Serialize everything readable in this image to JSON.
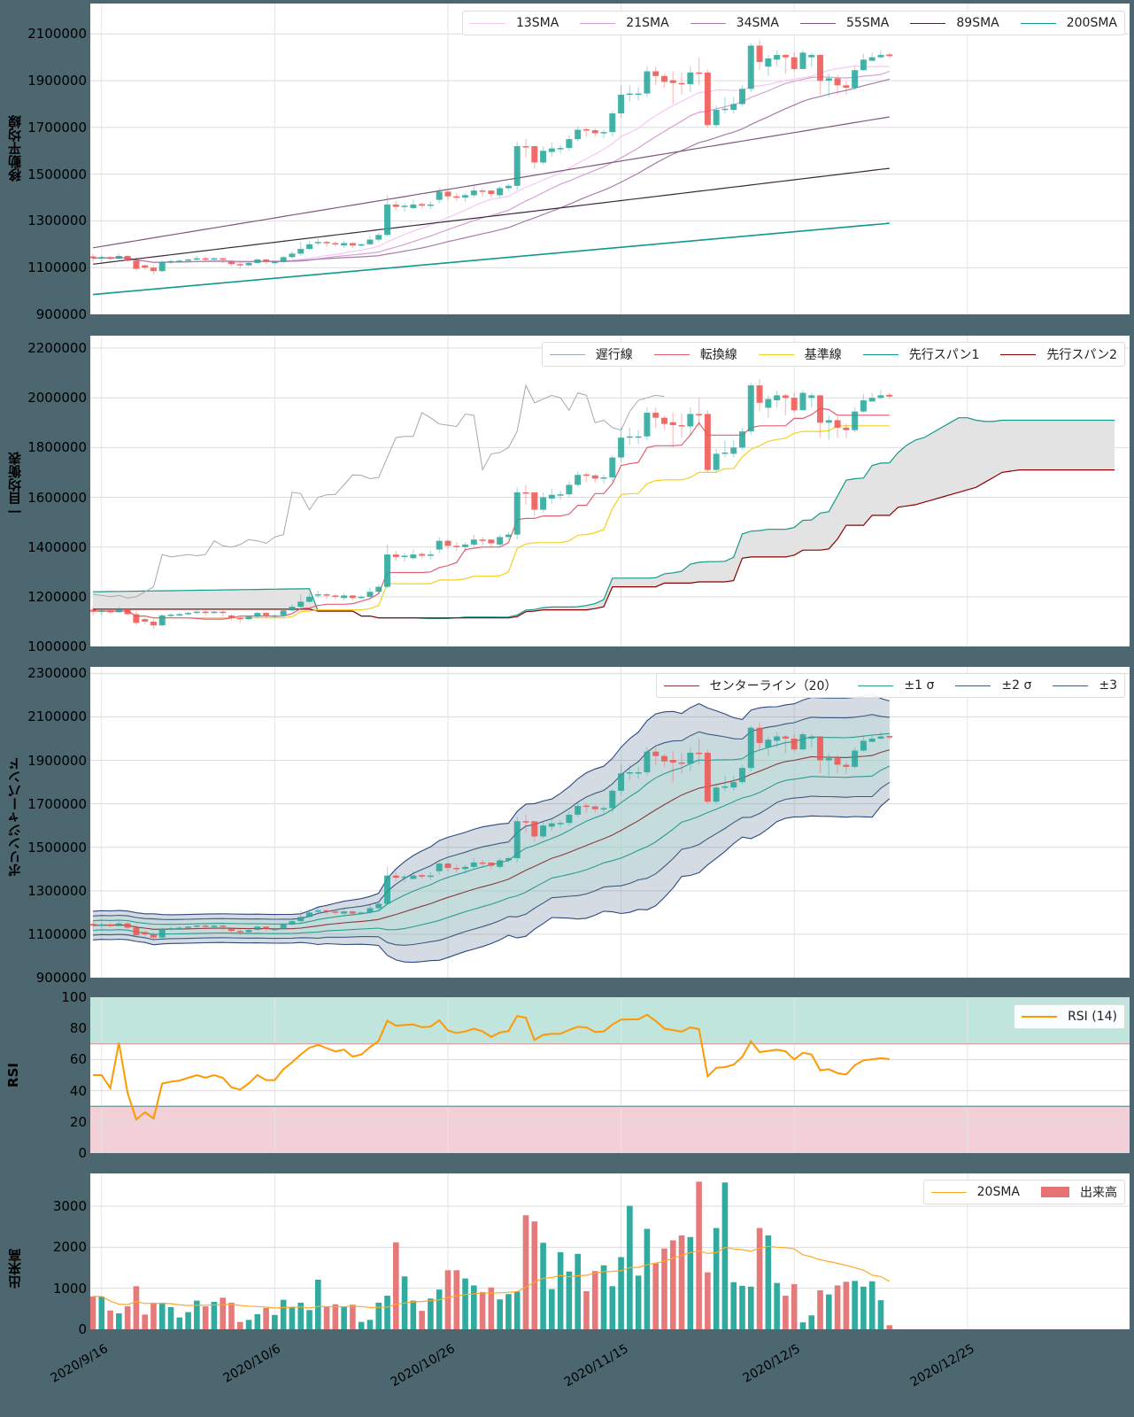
{
  "figure": {
    "background": "#4c6770",
    "up_color": "#26a69a",
    "down_color": "#ef5350"
  },
  "panels": {
    "sma": {
      "ylabel": "移動平均線",
      "yticks": [
        "2100000",
        "1900000",
        "1700000",
        "1500000",
        "1300000",
        "1100000",
        "900000"
      ],
      "legend": [
        {
          "label": "13SMA",
          "color": "#f5c8f5"
        },
        {
          "label": "21SMA",
          "color": "#d4a0d4"
        },
        {
          "label": "34SMA",
          "color": "#a87aa8"
        },
        {
          "label": "55SMA",
          "color": "#7d5a7d"
        },
        {
          "label": "89SMA",
          "color": "#3d2a3d"
        },
        {
          "label": "200SMA",
          "color": "#11998e"
        }
      ]
    },
    "ichimoku": {
      "ylabel": "一目均衡表",
      "yticks": [
        "2200000",
        "2000000",
        "1800000",
        "1600000",
        "1400000",
        "1200000",
        "1000000"
      ],
      "legend": [
        {
          "label": "遅行線",
          "color": "#a0a8b0"
        },
        {
          "label": "転換線",
          "color": "#e06070"
        },
        {
          "label": "基準線",
          "color": "#f5d020"
        },
        {
          "label": "先行スパン1",
          "color": "#139a8c"
        },
        {
          "label": "先行スパン2",
          "color": "#8b0000"
        }
      ]
    },
    "bollinger": {
      "ylabel": "ボリンジャーバンド",
      "yticks": [
        "2300000",
        "2100000",
        "1900000",
        "1700000",
        "1500000",
        "1300000",
        "1100000",
        "900000"
      ],
      "legend": [
        {
          "label": "センターライン（20）",
          "color": "#8b3a3a"
        },
        {
          "label": "±1 σ",
          "color": "#2a9d8f"
        },
        {
          "label": "±2 σ",
          "color": "#3d5a80"
        },
        {
          "label": "±3",
          "color": "#3d5a80"
        }
      ]
    },
    "rsi": {
      "ylabel": "RSI",
      "yticks": [
        "100",
        "80",
        "60",
        "40",
        "20",
        "0"
      ],
      "legend": [
        {
          "label": "RSI (14)",
          "color": "#ff9900"
        }
      ]
    },
    "volume": {
      "ylabel": "出来高",
      "yticks": [
        "3000",
        "2000",
        "1000",
        "0"
      ],
      "legend": [
        {
          "label": "20SMA",
          "color": "#ffa726"
        },
        {
          "label": "出来高",
          "color": "#e57373"
        }
      ]
    }
  },
  "xaxis": {
    "ticks": [
      "2020/9/16",
      "2020/10/6",
      "2020/10/26",
      "2020/11/15",
      "2020/12/5",
      "2020/12/25"
    ]
  },
  "chart_data": {
    "type": "candlestick+indicators",
    "start_date": "2020/9/15",
    "x_range_days": [
      -0.3,
      117.5
    ],
    "ohlc_close": [
      1140000,
      1145000,
      1138000,
      1150000,
      1130000,
      1095000,
      1100000,
      1085000,
      1125000,
      1128000,
      1130000,
      1135000,
      1140000,
      1135000,
      1140000,
      1135000,
      1115000,
      1110000,
      1120000,
      1135000,
      1125000,
      1125000,
      1145000,
      1160000,
      1180000,
      1200000,
      1210000,
      1205000,
      1200000,
      1205000,
      1195000,
      1200000,
      1220000,
      1240000,
      1370000,
      1360000,
      1365000,
      1370000,
      1365000,
      1370000,
      1425000,
      1405000,
      1400000,
      1410000,
      1430000,
      1425000,
      1415000,
      1440000,
      1450000,
      1620000,
      1615000,
      1550000,
      1600000,
      1610000,
      1612000,
      1650000,
      1690000,
      1688000,
      1675000,
      1680000,
      1760000,
      1840000,
      1845000,
      1845000,
      1940000,
      1920000,
      1895000,
      1890000,
      1885000,
      1935000,
      1930000,
      1710000,
      1775000,
      1780000,
      1800000,
      1865000,
      2050000,
      1980000,
      1995000,
      2010000,
      2000000,
      1950000,
      2020000,
      2010000,
      1900000,
      1910000,
      1880000,
      1870000,
      1945000,
      1990000,
      2000000,
      2010000,
      2005000
    ],
    "ohlc_open": [
      1148000,
      1140000,
      1145000,
      1138000,
      1150000,
      1130000,
      1110000,
      1100000,
      1085000,
      1125000,
      1128000,
      1130000,
      1135000,
      1140000,
      1135000,
      1140000,
      1125000,
      1115000,
      1110000,
      1120000,
      1135000,
      1120000,
      1125000,
      1145000,
      1160000,
      1180000,
      1205000,
      1210000,
      1205000,
      1195000,
      1205000,
      1195000,
      1200000,
      1220000,
      1240000,
      1370000,
      1360000,
      1355000,
      1372000,
      1365000,
      1390000,
      1425000,
      1405000,
      1400000,
      1410000,
      1430000,
      1430000,
      1410000,
      1440000,
      1450000,
      1620000,
      1620000,
      1550000,
      1595000,
      1610000,
      1612000,
      1650000,
      1692000,
      1688000,
      1675000,
      1680000,
      1760000,
      1840000,
      1843000,
      1845000,
      1940000,
      1920000,
      1902000,
      1890000,
      1885000,
      1935000,
      1935000,
      1710000,
      1780000,
      1775000,
      1800000,
      1865000,
      2050000,
      1960000,
      1990000,
      2010000,
      2000000,
      1950000,
      2000000,
      2010000,
      1900000,
      1910000,
      1880000,
      1870000,
      1945000,
      1985000,
      2000000,
      2012000
    ],
    "ohlc_high": [
      1160000,
      1155000,
      1150000,
      1160000,
      1155000,
      1145000,
      1115000,
      1110000,
      1130000,
      1135000,
      1137000,
      1140000,
      1150000,
      1148000,
      1145000,
      1145000,
      1130000,
      1125000,
      1125000,
      1140000,
      1138000,
      1130000,
      1150000,
      1170000,
      1210000,
      1215000,
      1225000,
      1215000,
      1212000,
      1215000,
      1208000,
      1205000,
      1235000,
      1250000,
      1410000,
      1385000,
      1375000,
      1390000,
      1380000,
      1385000,
      1440000,
      1430000,
      1420000,
      1420000,
      1450000,
      1440000,
      1430000,
      1450000,
      1460000,
      1640000,
      1650000,
      1600000,
      1620000,
      1635000,
      1625000,
      1665000,
      1705000,
      1700000,
      1695000,
      1690000,
      1770000,
      1880000,
      1880000,
      1870000,
      1960000,
      1960000,
      1930000,
      1940000,
      1935000,
      1960000,
      2000000,
      1950000,
      1795000,
      1830000,
      1830000,
      1880000,
      2060000,
      2075000,
      2010000,
      2030000,
      2015000,
      2020000,
      2030000,
      2020000,
      2012000,
      1930000,
      1925000,
      1895000,
      1960000,
      2015000,
      2020000,
      2030000,
      2020000
    ],
    "ohlc_low": [
      1125000,
      1125000,
      1130000,
      1135000,
      1125000,
      1085000,
      1090000,
      1070000,
      1080000,
      1115000,
      1120000,
      1125000,
      1130000,
      1125000,
      1130000,
      1120000,
      1105000,
      1095000,
      1105000,
      1115000,
      1115000,
      1115000,
      1120000,
      1140000,
      1150000,
      1175000,
      1195000,
      1190000,
      1190000,
      1185000,
      1185000,
      1190000,
      1195000,
      1210000,
      1235000,
      1345000,
      1340000,
      1350000,
      1355000,
      1350000,
      1375000,
      1390000,
      1385000,
      1380000,
      1400000,
      1405000,
      1400000,
      1400000,
      1430000,
      1430000,
      1570000,
      1525000,
      1540000,
      1575000,
      1590000,
      1600000,
      1640000,
      1660000,
      1660000,
      1655000,
      1660000,
      1740000,
      1810000,
      1815000,
      1830000,
      1880000,
      1870000,
      1800000,
      1840000,
      1850000,
      1880000,
      1700000,
      1700000,
      1760000,
      1760000,
      1790000,
      1850000,
      1945000,
      1920000,
      1960000,
      1930000,
      1940000,
      1980000,
      1960000,
      1840000,
      1830000,
      1840000,
      1840000,
      1860000,
      1940000,
      1990000,
      1995000,
      1995000
    ],
    "volume": [
      800,
      800,
      460,
      390,
      560,
      1050,
      360,
      650,
      650,
      540,
      290,
      420,
      700,
      560,
      670,
      770,
      650,
      180,
      230,
      370,
      520,
      350,
      720,
      550,
      650,
      470,
      1210,
      540,
      610,
      550,
      600,
      180,
      230,
      650,
      820,
      2120,
      1290,
      700,
      450,
      750,
      970,
      1440,
      1440,
      1240,
      1070,
      910,
      1020,
      730,
      860,
      920,
      2780,
      2630,
      2110,
      980,
      1880,
      1410,
      1840,
      930,
      1420,
      1560,
      1050,
      1760,
      3010,
      1310,
      2450,
      1610,
      1970,
      2170,
      2290,
      2250,
      3600,
      1390,
      2470,
      3580,
      1150,
      1060,
      1040,
      2470,
      2290,
      1130,
      820,
      1100,
      170,
      340,
      950,
      850,
      1070,
      1160,
      1180,
      1040,
      1170,
      710,
      100
    ],
    "sma_long": {
      "sma55_start": 1185000,
      "sma55_end": 1745000,
      "sma89_start": 1115000,
      "sma89_end": 1525000,
      "sma200_start": 985000,
      "sma200_end": 1290000
    },
    "ichimoku_cloud_future": {
      "span1_end": [
        1780000,
        1810000,
        1830000,
        1840000,
        1860000,
        1880000,
        1900000,
        1920000,
        1920000,
        1910000,
        1905000,
        1905000,
        1910000,
        1910000,
        1910000,
        1910000,
        1910000,
        1910000,
        1910000,
        1910000,
        1910000,
        1910000,
        1910000,
        1910000,
        1910000,
        1910000
      ],
      "span2_end": [
        1560000,
        1565000,
        1570000,
        1580000,
        1590000,
        1600000,
        1610000,
        1620000,
        1630000,
        1640000,
        1660000,
        1680000,
        1700000,
        1705000,
        1710000,
        1710000,
        1710000,
        1710000,
        1710000,
        1710000,
        1710000,
        1710000,
        1710000,
        1710000,
        1710000,
        1710000
      ]
    },
    "rsi_band": {
      "upper": 70,
      "lower": 30
    },
    "ylim": {
      "sma": [
        900000,
        2230000
      ],
      "ichimoku": [
        1000000,
        2250000
      ],
      "bollinger": [
        900000,
        2330000
      ],
      "rsi": [
        0,
        100
      ],
      "volume": [
        0,
        3800
      ]
    }
  }
}
